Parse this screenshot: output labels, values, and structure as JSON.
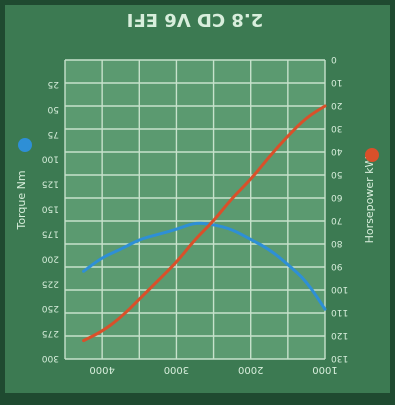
{
  "chart_data": {
    "type": "line",
    "title": "2.8 CD V6 EFI",
    "rotated": true,
    "grid": true,
    "x_axis": {
      "label": "",
      "range": [
        1000,
        4500
      ],
      "ticks": [
        "1000",
        "2000",
        "3000",
        "4000"
      ]
    },
    "left_axis": {
      "label": "Torque Nm",
      "range": [
        0,
        300
      ],
      "ticks": [
        "300",
        "275",
        "250",
        "225",
        "200",
        "175",
        "150",
        "125",
        "100",
        "75",
        "50",
        "25"
      ]
    },
    "right_axis": {
      "label": "Horsepower kW",
      "range": [
        0,
        130
      ],
      "ticks": [
        "130",
        "120",
        "110",
        "100",
        "90",
        "80",
        "70",
        "60",
        "50",
        "40",
        "30",
        "20",
        "10",
        "0"
      ]
    },
    "series": [
      {
        "name": "Torque Nm",
        "axis": "left",
        "color": "#2e8fd6",
        "x": [
          1000,
          1250,
          1500,
          1750,
          2000,
          2250,
          2500,
          2750,
          3000,
          3250,
          3500,
          3750,
          4000,
          4250
        ],
        "y": [
          250,
          222,
          205,
          190,
          180,
          170,
          165,
          163,
          170,
          175,
          180,
          190,
          198,
          212
        ]
      },
      {
        "name": "Horsepower kW",
        "axis": "right",
        "color": "#d9502a",
        "x": [
          1000,
          1250,
          1500,
          1750,
          2000,
          2250,
          2500,
          2750,
          3000,
          3250,
          3500,
          3750,
          4000,
          4250
        ],
        "y": [
          20,
          25,
          33,
          42,
          52,
          60,
          70,
          78,
          88,
          96,
          104,
          112,
          118,
          122
        ]
      }
    ]
  },
  "colors": {
    "background": "#1f4a30",
    "frame": "#3c7a52",
    "plot": "#5b9a70",
    "grid": "#c7e2cc",
    "text": "#d8eedc"
  }
}
